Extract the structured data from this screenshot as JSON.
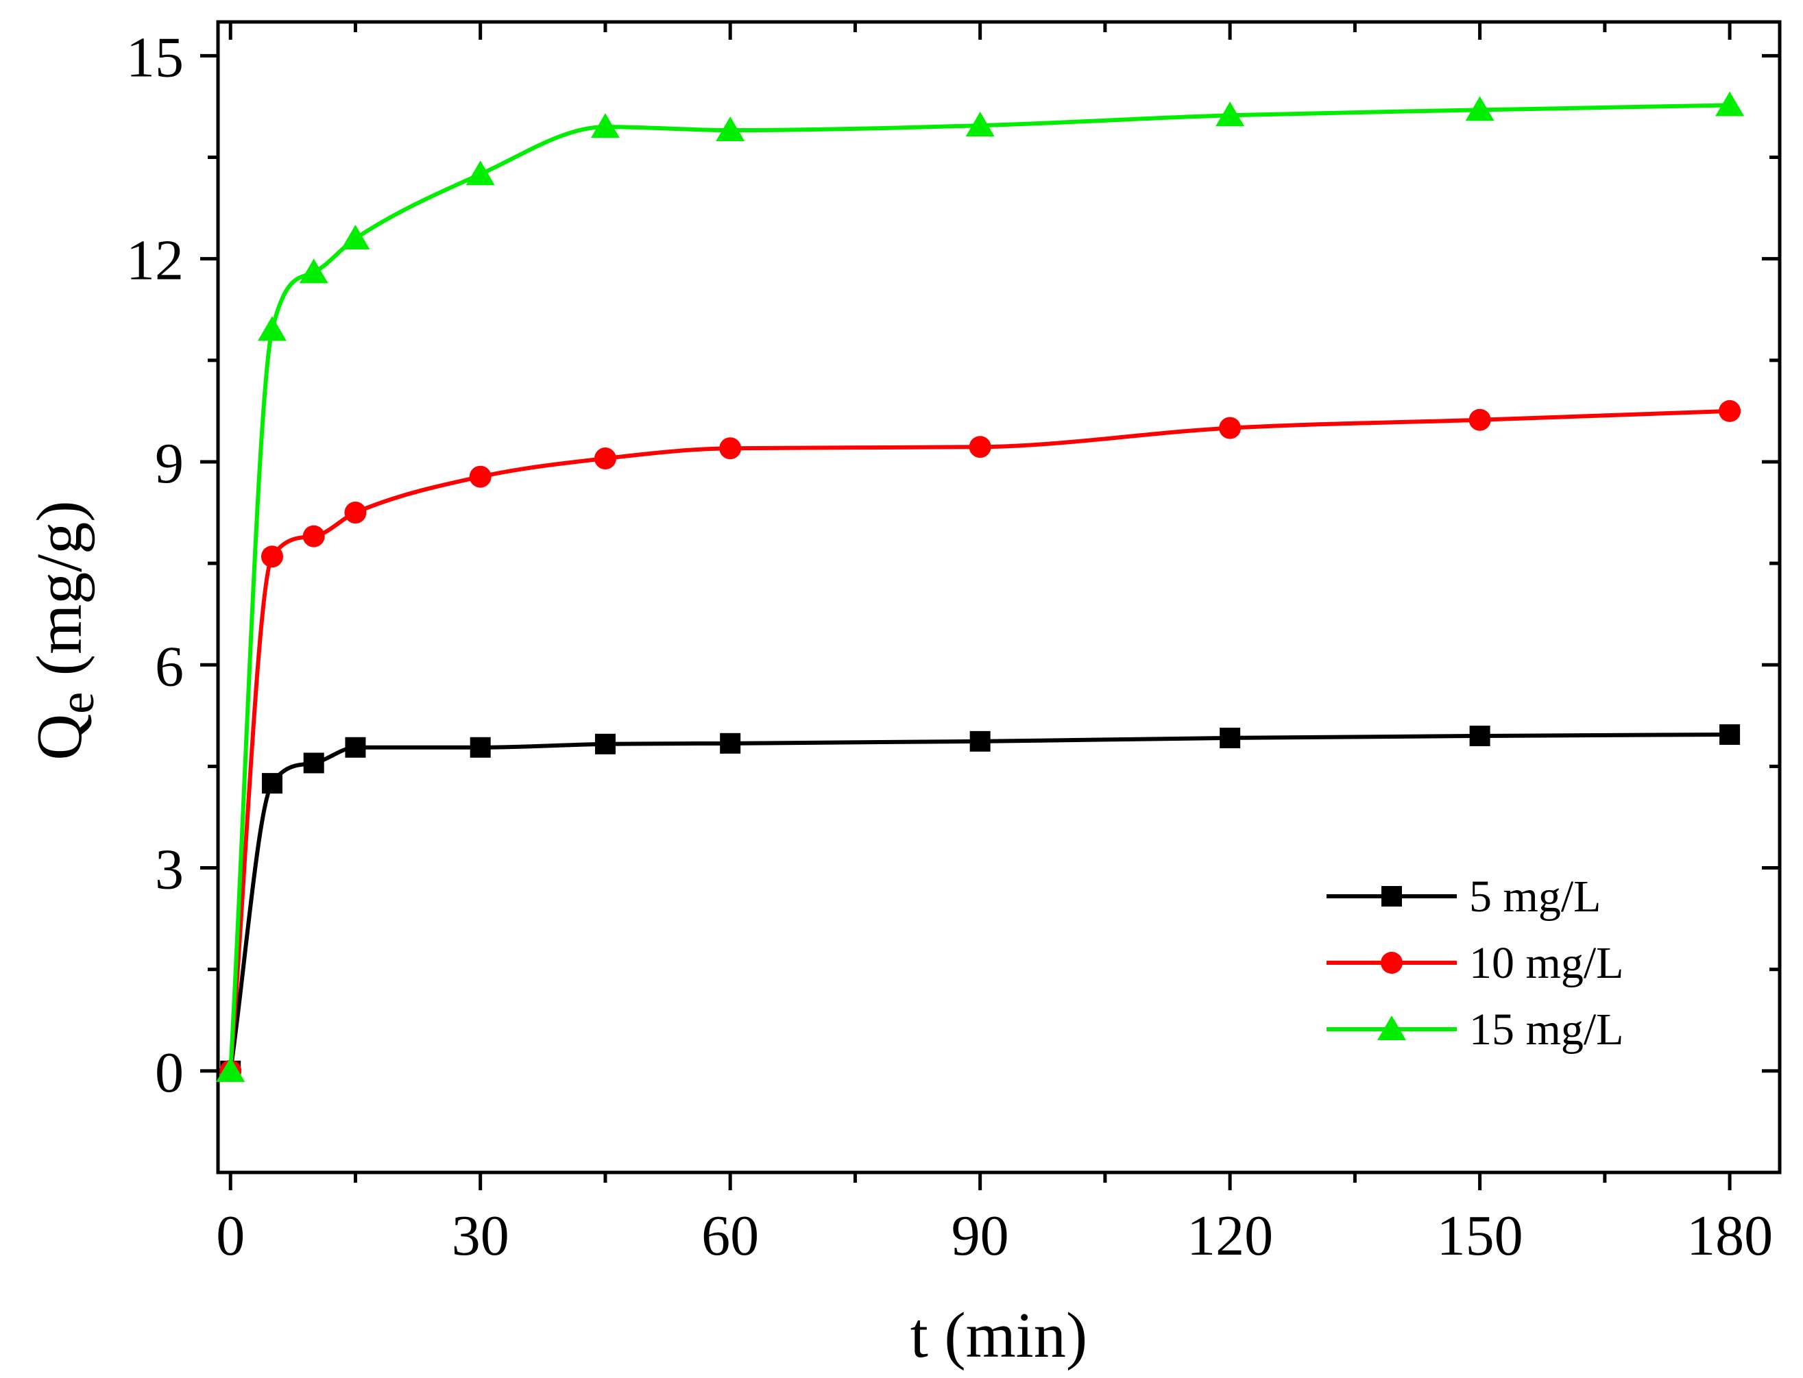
{
  "chart_data": {
    "type": "line",
    "title": "",
    "xlabel": "t (min)",
    "ylabel_main": "Q",
    "ylabel_sub": "e",
    "ylabel_unit": " (mg/g)",
    "xlim": [
      -1.5,
      186
    ],
    "ylim": [
      -1.5,
      15.5
    ],
    "xticks": [
      0,
      30,
      60,
      90,
      120,
      150,
      180
    ],
    "xticks_minor": [
      15,
      45,
      75,
      105,
      135,
      165
    ],
    "yticks": [
      0,
      3,
      6,
      9,
      12,
      15
    ],
    "yticks_minor": [
      1.5,
      4.5,
      7.5,
      10.5,
      13.5
    ],
    "legend_position": "bottom-right",
    "x": [
      0,
      5,
      10,
      15,
      30,
      45,
      60,
      90,
      120,
      150,
      180
    ],
    "series": [
      {
        "name": "5 mg/L",
        "color": "#000000",
        "marker": "square",
        "values": [
          0,
          4.25,
          4.55,
          4.78,
          4.78,
          4.83,
          4.84,
          4.87,
          4.92,
          4.95,
          4.97
        ]
      },
      {
        "name": "10 mg/L",
        "color": "#ff0000",
        "marker": "circle",
        "values": [
          0,
          7.6,
          7.9,
          8.25,
          8.78,
          9.05,
          9.2,
          9.22,
          9.5,
          9.62,
          9.75
        ]
      },
      {
        "name": "15 mg/L",
        "color": "#00ee00",
        "marker": "triangle",
        "values": [
          0,
          10.95,
          11.8,
          12.3,
          13.25,
          13.95,
          13.9,
          13.97,
          14.12,
          14.2,
          14.27
        ]
      }
    ]
  }
}
